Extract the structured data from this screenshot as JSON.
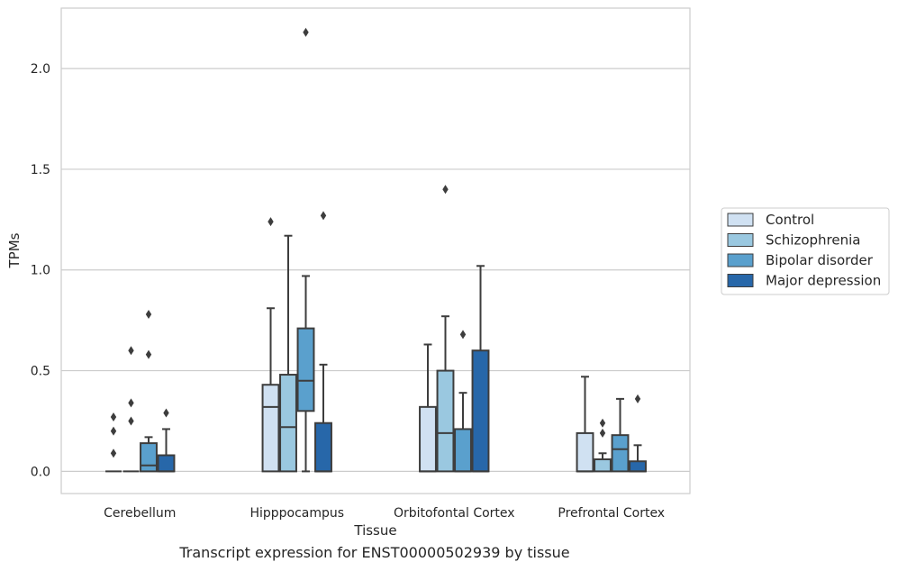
{
  "caption": "Transcript expression for ENST00000502939 by tissue",
  "chart_data": {
    "type": "box",
    "xlabel": "Tissue",
    "ylabel": "TPMs",
    "ylim": [
      -0.11,
      2.3
    ],
    "yticks": [
      0.0,
      0.5,
      1.0,
      1.5,
      2.0
    ],
    "ytick_labels": [
      "0.0",
      "0.5",
      "1.0",
      "1.5",
      "2.0"
    ],
    "grid": "horizontal",
    "legend_position": "right",
    "categories": [
      "Cerebellum",
      "Hipppocampus",
      "Orbitofontal Cortex",
      "Prefrontal Cortex"
    ],
    "series": [
      {
        "name": "Control",
        "color": "#d0e1f2",
        "boxes": [
          {
            "whislo": 0,
            "q1": 0,
            "med": 0,
            "q3": 0,
            "whishi": 0,
            "fliers": [
              0.09,
              0.2,
              0.27
            ]
          },
          {
            "whislo": 0,
            "q1": 0,
            "med": 0.32,
            "q3": 0.43,
            "whishi": 0.81,
            "fliers": [
              1.24
            ]
          },
          {
            "whislo": 0,
            "q1": 0,
            "med": 0,
            "q3": 0.32,
            "whishi": 0.63,
            "fliers": []
          },
          {
            "whislo": 0,
            "q1": 0,
            "med": 0,
            "q3": 0.19,
            "whishi": 0.47,
            "fliers": []
          }
        ]
      },
      {
        "name": "Schizophrenia",
        "color": "#9ac8e0",
        "boxes": [
          {
            "whislo": 0,
            "q1": 0,
            "med": 0,
            "q3": 0,
            "whishi": 0,
            "fliers": [
              0.25,
              0.34,
              0.6
            ]
          },
          {
            "whislo": 0,
            "q1": 0,
            "med": 0.22,
            "q3": 0.48,
            "whishi": 1.17,
            "fliers": []
          },
          {
            "whislo": 0,
            "q1": 0,
            "med": 0.19,
            "q3": 0.5,
            "whishi": 0.77,
            "fliers": [
              1.4
            ]
          },
          {
            "whislo": 0,
            "q1": 0,
            "med": 0.06,
            "q3": 0.06,
            "whishi": 0.09,
            "fliers": [
              0.19,
              0.24
            ]
          }
        ]
      },
      {
        "name": "Bipolar disorder",
        "color": "#5aa0cd",
        "boxes": [
          {
            "whislo": 0,
            "q1": 0,
            "med": 0.03,
            "q3": 0.14,
            "whishi": 0.17,
            "fliers": [
              0.58,
              0.78
            ]
          },
          {
            "whislo": 0,
            "q1": 0.3,
            "med": 0.45,
            "q3": 0.71,
            "whishi": 0.97,
            "fliers": [
              2.18
            ]
          },
          {
            "whislo": 0,
            "q1": 0,
            "med": 0,
            "q3": 0.21,
            "whishi": 0.39,
            "fliers": [
              0.68
            ]
          },
          {
            "whislo": 0,
            "q1": 0,
            "med": 0.11,
            "q3": 0.18,
            "whishi": 0.36,
            "fliers": []
          }
        ]
      },
      {
        "name": "Major depression",
        "color": "#2767a9",
        "boxes": [
          {
            "whislo": 0,
            "q1": 0,
            "med": 0,
            "q3": 0.08,
            "whishi": 0.21,
            "fliers": [
              0.29
            ]
          },
          {
            "whislo": 0,
            "q1": 0,
            "med": 0,
            "q3": 0.24,
            "whishi": 0.53,
            "fliers": [
              1.27
            ]
          },
          {
            "whislo": 0,
            "q1": 0,
            "med": 0,
            "q3": 0.6,
            "whishi": 1.02,
            "fliers": []
          },
          {
            "whislo": 0,
            "q1": 0,
            "med": 0,
            "q3": 0.05,
            "whishi": 0.13,
            "fliers": [
              0.36
            ]
          }
        ]
      }
    ]
  }
}
